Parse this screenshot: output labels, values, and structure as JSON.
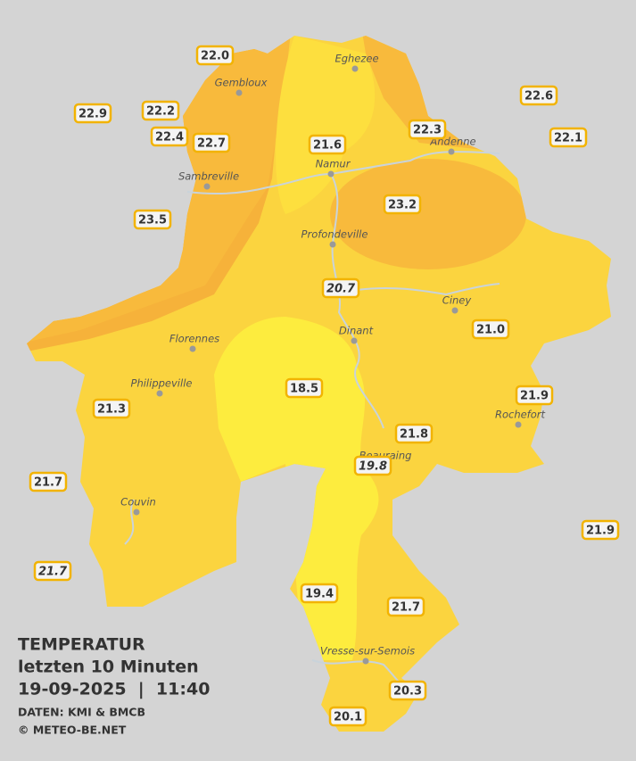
{
  "title": {
    "line1": "TEMPERATUR",
    "line2": "letzten 10 Minuten",
    "line3": "19-09-2025  |  11:40",
    "source": "DATEN: KMI & BMCB",
    "credit": "© METEO-BE.NET"
  },
  "cities": [
    {
      "name": "Eghezee"
    },
    {
      "name": "Gembloux"
    },
    {
      "name": "Andenne"
    },
    {
      "name": "Namur"
    },
    {
      "name": "Sambreville"
    },
    {
      "name": "Profondeville"
    },
    {
      "name": "Ciney"
    },
    {
      "name": "Dinant"
    },
    {
      "name": "Florennes"
    },
    {
      "name": "Philippeville"
    },
    {
      "name": "Rochefort"
    },
    {
      "name": "Beauraing"
    },
    {
      "name": "Couvin"
    },
    {
      "name": "Vresse-sur-Semois"
    }
  ],
  "stations": [
    {
      "label": "22.0"
    },
    {
      "label": "22.9"
    },
    {
      "label": "22.2"
    },
    {
      "label": "22.4"
    },
    {
      "label": "22.7"
    },
    {
      "label": "21.6"
    },
    {
      "label": "22.3"
    },
    {
      "label": "22.6"
    },
    {
      "label": "22.1"
    },
    {
      "label": "23.5"
    },
    {
      "label": "23.2"
    },
    {
      "label": "20.7",
      "italic": true
    },
    {
      "label": "21.0"
    },
    {
      "label": "18.5"
    },
    {
      "label": "21.3"
    },
    {
      "label": "21.9"
    },
    {
      "label": "21.8"
    },
    {
      "label": "19.8",
      "italic": true
    },
    {
      "label": "21.7"
    },
    {
      "label": "21.9"
    },
    {
      "label": "21.7",
      "italic": true
    },
    {
      "label": "19.4"
    },
    {
      "label": "21.7"
    },
    {
      "label": "20.3"
    },
    {
      "label": "20.1"
    }
  ]
}
